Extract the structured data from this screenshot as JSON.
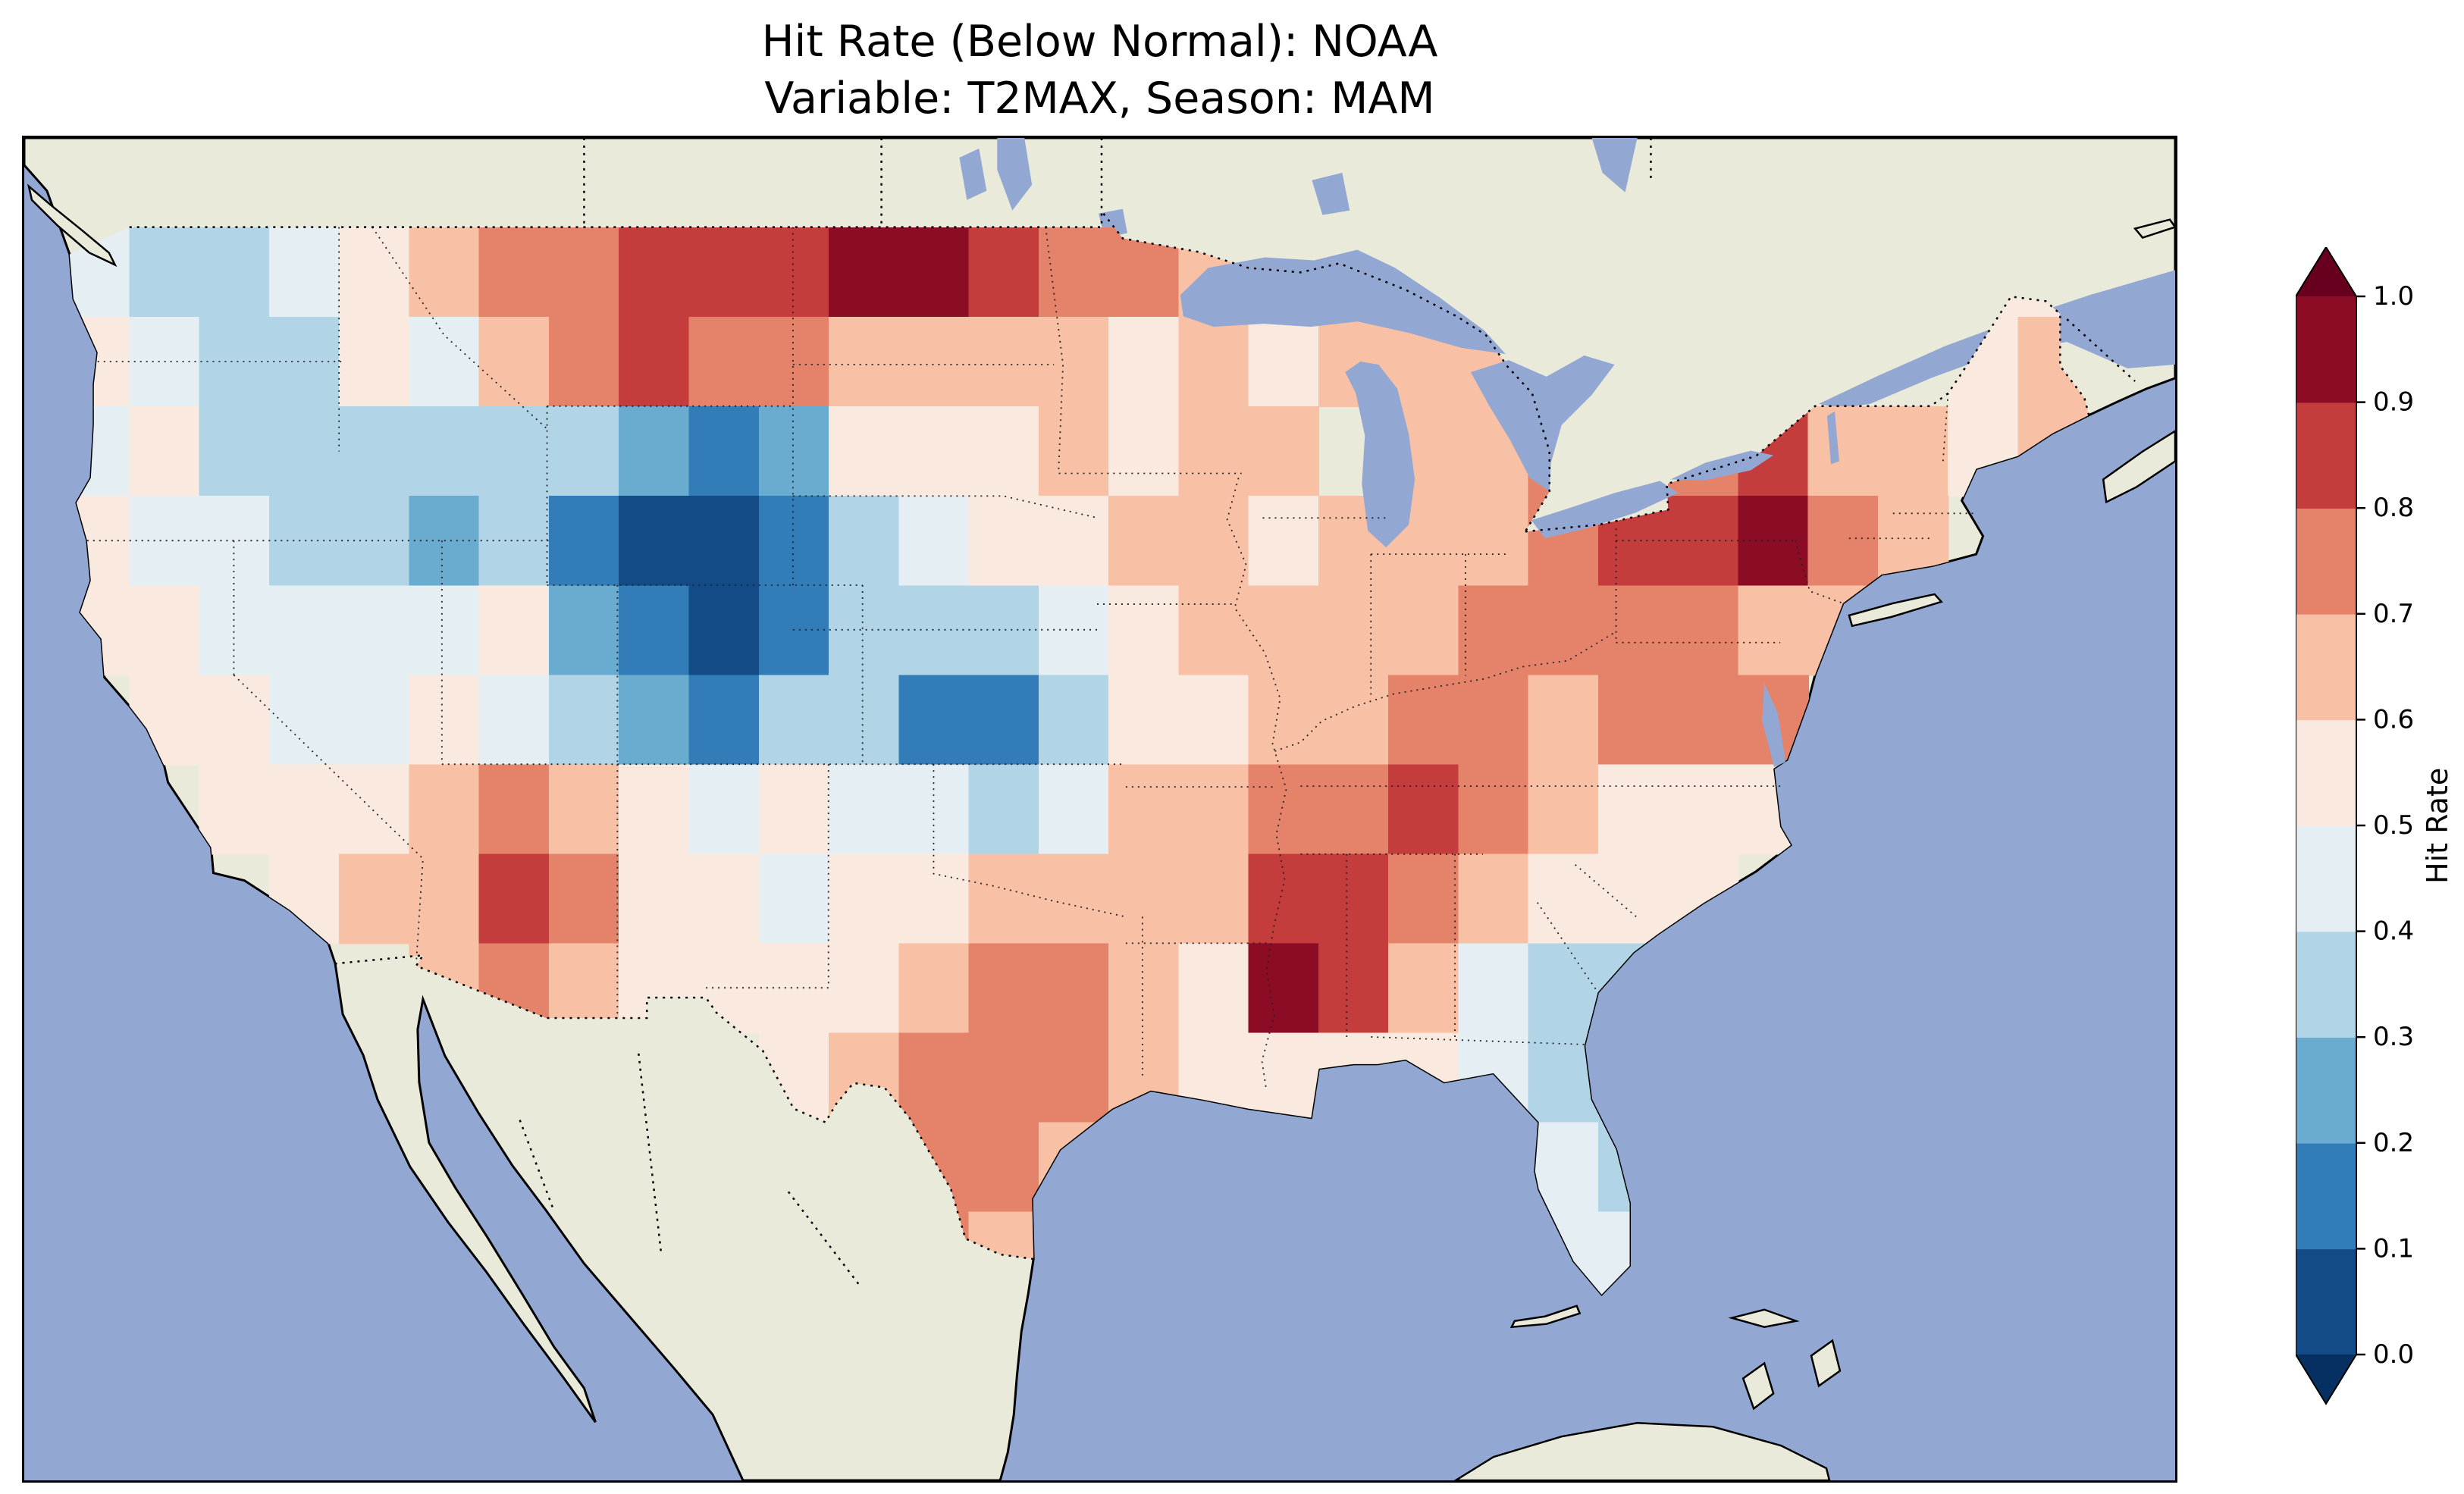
{
  "title": {
    "line1": "Hit Rate (Below Normal): NOAA",
    "line2": "Variable: T2MAX, Season: MAM"
  },
  "colorbar": {
    "label": "Hit Rate",
    "extend": "both",
    "ticks": [
      {
        "value": 1.0,
        "label": "1.0"
      },
      {
        "value": 0.9,
        "label": "0.9"
      },
      {
        "value": 0.8,
        "label": "0.8"
      },
      {
        "value": 0.7,
        "label": "0.7"
      },
      {
        "value": 0.6,
        "label": "0.6"
      },
      {
        "value": 0.5,
        "label": "0.5"
      },
      {
        "value": 0.4,
        "label": "0.4"
      },
      {
        "value": 0.3,
        "label": "0.3"
      },
      {
        "value": 0.2,
        "label": "0.2"
      },
      {
        "value": 0.1,
        "label": "0.1"
      },
      {
        "value": 0.0,
        "label": "0.0"
      }
    ],
    "band_colors": [
      "#134b86",
      "#327cb8",
      "#6aacd0",
      "#b1d5e7",
      "#e4eef3",
      "#fae9df",
      "#f8c0a4",
      "#e5826a",
      "#c43c3c",
      "#8c0c25"
    ],
    "under_color": "#053061",
    "over_color": "#67001f"
  },
  "map_colors": {
    "ocean": "#92a8d3",
    "land": "#eaeadb",
    "lake": "#92a8d3",
    "coastline": "#000000",
    "state_border": "#222222"
  },
  "chart_data": {
    "type": "heatmap",
    "title": "Hit Rate (Below Normal): NOAA",
    "subtitle": "Variable: T2MAX, Season: MAM",
    "metric": "Hit Rate (Below Normal)",
    "source": "NOAA",
    "variable": "T2MAX",
    "season": "MAM",
    "colormap": "RdBu_r, discrete 0.1 bins, extend both",
    "vmin": 0.0,
    "vmax": 1.0,
    "region": "Continental United States",
    "grid": {
      "lon_west_edge": -125,
      "lon_step_deg": 2,
      "cols": 29,
      "lat_north_edge": 49,
      "lat_step_deg": -2,
      "rows": 12,
      "note": "values estimated from rendered map; null = no data / outside CONUS"
    },
    "values": [
      [
        0.45,
        0.3,
        0.3,
        0.45,
        0.55,
        0.6,
        0.7,
        0.75,
        0.8,
        0.8,
        0.85,
        0.95,
        1.0,
        0.85,
        0.7,
        0.75,
        0.6,
        null,
        null,
        null,
        null,
        null,
        null,
        null,
        null,
        null,
        null,
        0.55,
        0.55
      ],
      [
        0.5,
        0.4,
        0.3,
        0.35,
        0.5,
        0.45,
        0.6,
        0.75,
        0.8,
        0.75,
        0.7,
        0.65,
        0.6,
        0.6,
        0.65,
        0.55,
        0.6,
        0.55,
        0.6,
        0.65,
        0.6,
        null,
        null,
        null,
        null,
        null,
        null,
        0.55,
        0.6
      ],
      [
        0.45,
        0.5,
        0.35,
        0.3,
        0.35,
        0.3,
        0.35,
        0.3,
        0.2,
        0.15,
        0.25,
        0.5,
        0.55,
        0.55,
        0.6,
        0.55,
        0.6,
        0.6,
        null,
        0.6,
        0.65,
        0.7,
        null,
        0.75,
        0.8,
        0.65,
        0.6,
        0.55,
        0.6
      ],
      [
        0.5,
        0.45,
        0.4,
        0.35,
        0.3,
        0.25,
        0.3,
        0.15,
        0.05,
        0.05,
        0.1,
        0.3,
        0.45,
        0.5,
        0.55,
        0.6,
        0.6,
        0.55,
        0.6,
        0.6,
        0.65,
        0.75,
        0.8,
        0.85,
        0.9,
        0.7,
        0.6,
        null,
        null
      ],
      [
        0.55,
        0.5,
        0.45,
        0.4,
        0.45,
        0.4,
        0.5,
        0.2,
        0.1,
        0.05,
        0.15,
        0.35,
        0.35,
        0.3,
        0.45,
        0.55,
        0.6,
        0.6,
        0.6,
        0.65,
        0.7,
        0.75,
        0.7,
        0.7,
        0.65,
        0.6,
        null,
        null,
        null
      ],
      [
        null,
        0.55,
        0.5,
        0.45,
        0.4,
        0.5,
        0.45,
        0.3,
        0.25,
        0.15,
        0.3,
        0.3,
        0.15,
        0.1,
        0.3,
        0.5,
        0.55,
        0.6,
        0.65,
        0.7,
        0.7,
        0.65,
        0.7,
        0.75,
        0.7,
        null,
        null,
        null,
        null
      ],
      [
        null,
        null,
        0.55,
        0.5,
        0.55,
        0.6,
        0.75,
        0.6,
        0.5,
        0.45,
        0.5,
        0.45,
        0.45,
        0.35,
        0.45,
        0.6,
        0.65,
        0.7,
        0.75,
        0.8,
        0.7,
        0.6,
        0.55,
        0.5,
        0.55,
        null,
        null,
        null,
        null
      ],
      [
        null,
        null,
        null,
        0.55,
        0.6,
        0.65,
        0.8,
        0.7,
        0.55,
        0.5,
        0.45,
        0.5,
        0.55,
        0.6,
        0.65,
        0.6,
        0.65,
        0.8,
        0.8,
        0.7,
        0.65,
        0.55,
        0.5,
        0.55,
        null,
        null,
        null,
        null,
        null
      ],
      [
        null,
        null,
        null,
        null,
        null,
        0.6,
        0.7,
        0.6,
        0.5,
        0.55,
        0.5,
        0.55,
        0.65,
        0.7,
        0.7,
        0.6,
        0.55,
        0.9,
        0.85,
        0.6,
        0.4,
        0.3,
        0.35,
        null,
        null,
        null,
        null,
        null,
        null
      ],
      [
        null,
        null,
        null,
        null,
        null,
        null,
        null,
        null,
        null,
        null,
        0.55,
        0.6,
        0.7,
        0.75,
        0.7,
        0.6,
        0.55,
        0.5,
        0.55,
        0.5,
        0.45,
        0.3,
        0.35,
        null,
        null,
        null,
        null,
        null,
        null
      ],
      [
        null,
        null,
        null,
        null,
        null,
        null,
        null,
        null,
        null,
        null,
        null,
        null,
        0.75,
        0.7,
        0.65,
        null,
        null,
        null,
        null,
        null,
        null,
        0.4,
        0.35,
        null,
        null,
        null,
        null,
        null,
        null
      ],
      [
        null,
        null,
        null,
        null,
        null,
        null,
        null,
        null,
        null,
        null,
        null,
        null,
        0.7,
        0.65,
        null,
        null,
        null,
        null,
        null,
        null,
        null,
        0.4,
        0.45,
        null,
        null,
        null,
        null,
        null,
        null
      ]
    ]
  }
}
